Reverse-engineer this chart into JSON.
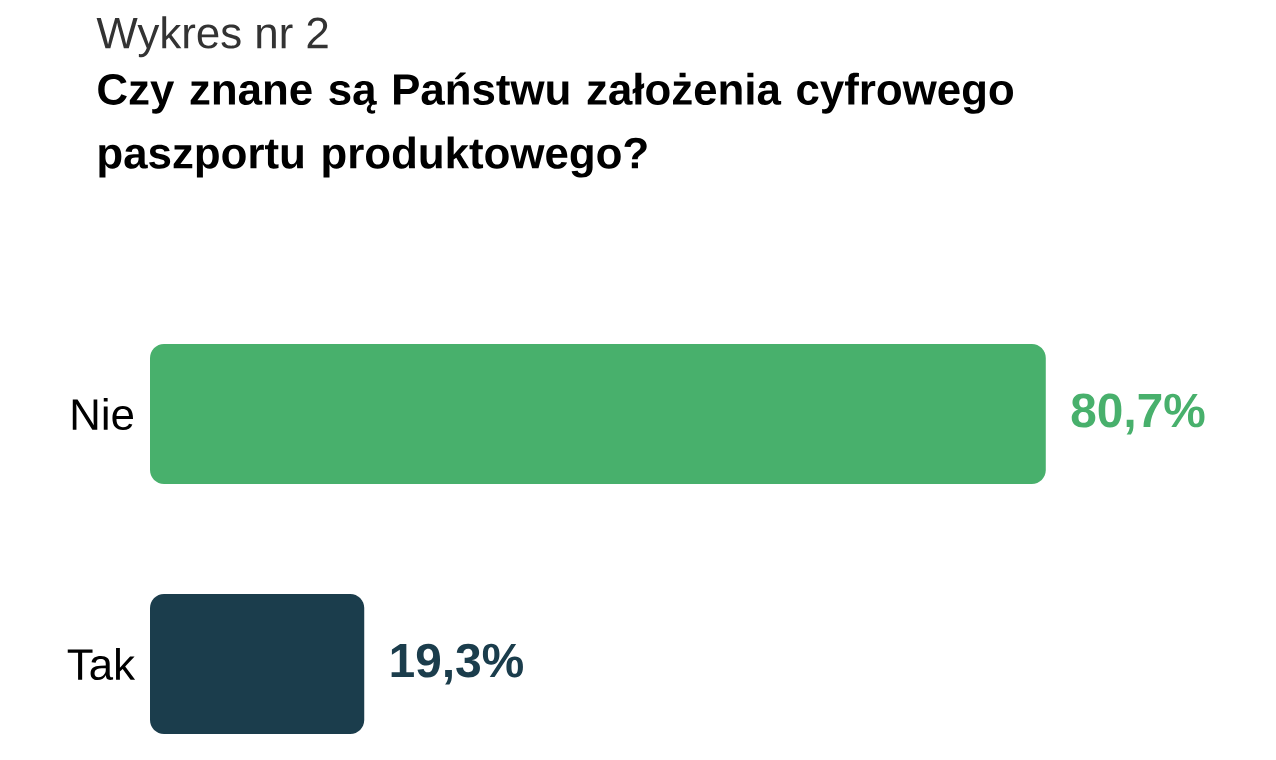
{
  "chart_data": {
    "type": "bar",
    "orientation": "horizontal",
    "title": "Wykres nr 2",
    "subtitle": "Czy znane są Państwu założenia cyfrowego paszportu produktowego?",
    "categories": [
      "Nie",
      "Tak"
    ],
    "values": [
      80.7,
      19.3
    ],
    "colors": [
      "#48b06c",
      "#1b3d4c"
    ],
    "value_labels": [
      "80,7%",
      "19,3%"
    ]
  }
}
